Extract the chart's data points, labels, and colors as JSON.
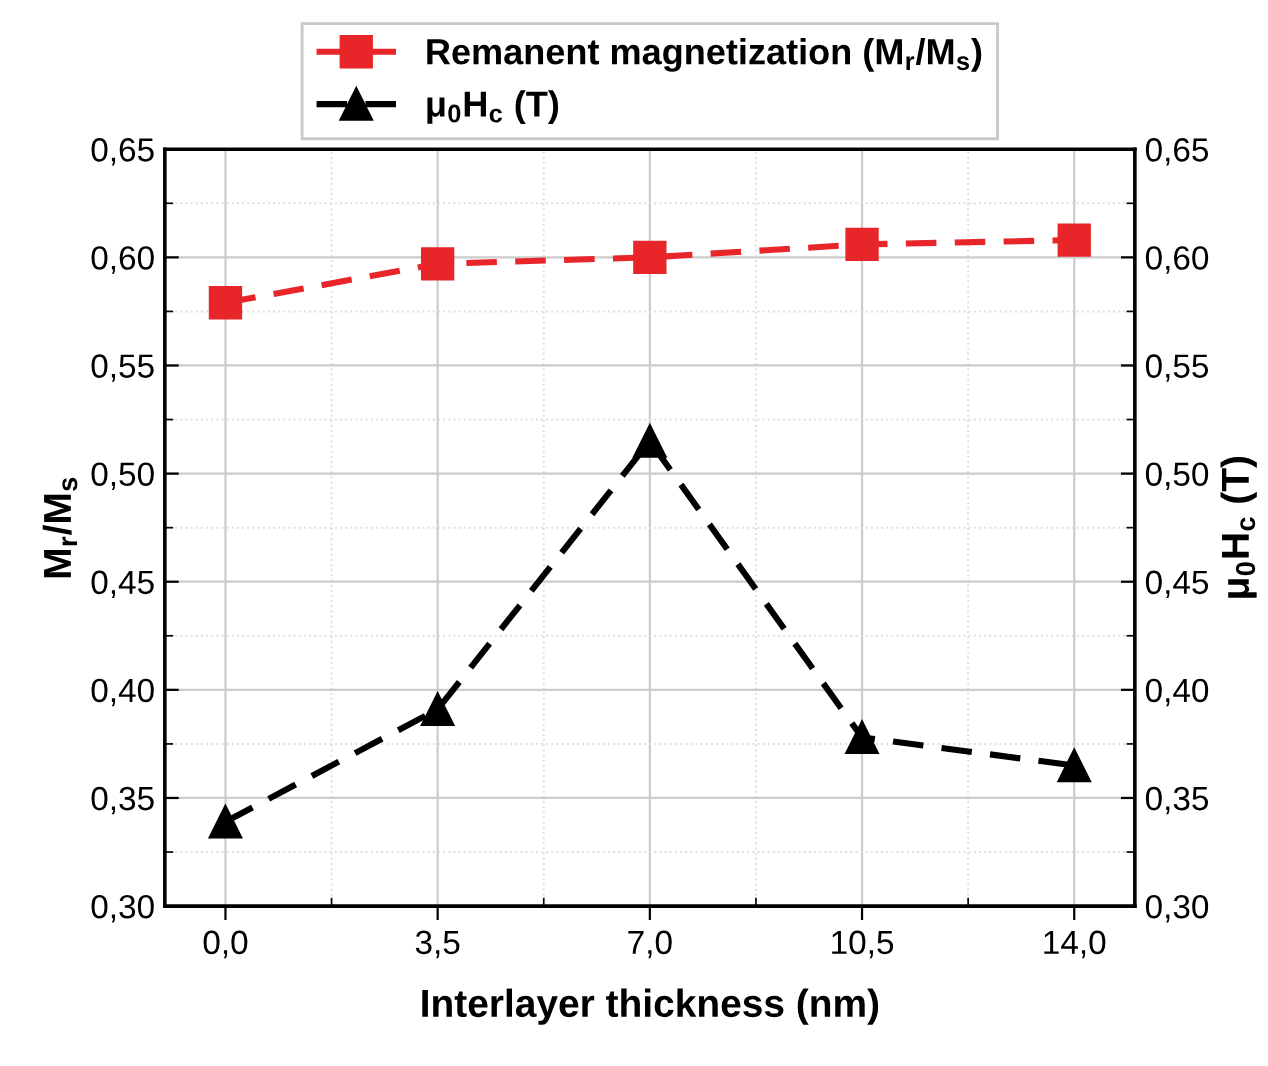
{
  "chart_data": {
    "type": "line",
    "xlabel": "Interlayer thickness (nm)",
    "ylabel": "M$_{r}$/M$_{s}$",
    "y2label": "μ$_{0}$H$_{c}$ (T)",
    "x": [
      0,
      3.5,
      7,
      10.5,
      14
    ],
    "series": [
      {
        "name": "Remanent magnetization (M$_{r}$/M$_{s}$)",
        "color": "#e8262a",
        "marker": "square",
        "values": [
          0.579,
          0.597,
          0.6,
          0.606,
          0.608
        ]
      },
      {
        "name": "μ$_{0}$H$_{c}$ (T)",
        "color": "#000000",
        "marker": "triangle",
        "axis": "y2",
        "values": [
          0.339,
          0.391,
          0.515,
          0.378,
          0.365
        ]
      }
    ],
    "xlim": [
      -1,
      15
    ],
    "xticks": [
      {
        "value": 0,
        "label": "0,0"
      },
      {
        "value": 3.5,
        "label": "3,5"
      },
      {
        "value": 7,
        "label": "7,0"
      },
      {
        "value": 10.5,
        "label": "10,5"
      },
      {
        "value": 14,
        "label": "14,0"
      }
    ],
    "ylim": [
      0.3,
      0.65
    ],
    "yticks": [
      {
        "value": 0.3,
        "label": "0,30"
      },
      {
        "value": 0.35,
        "label": "0,35"
      },
      {
        "value": 0.4,
        "label": "0,40"
      },
      {
        "value": 0.45,
        "label": "0,45"
      },
      {
        "value": 0.5,
        "label": "0,50"
      },
      {
        "value": 0.55,
        "label": "0,55"
      },
      {
        "value": 0.6,
        "label": "0,60"
      },
      {
        "value": 0.65,
        "label": "0,65"
      }
    ],
    "y2lim": [
      0.3,
      0.65
    ],
    "y2ticks": [
      {
        "value": 0.3,
        "label": "0,30"
      },
      {
        "value": 0.35,
        "label": "0,35"
      },
      {
        "value": 0.4,
        "label": "0,40"
      },
      {
        "value": 0.45,
        "label": "0,45"
      },
      {
        "value": 0.5,
        "label": "0,50"
      },
      {
        "value": 0.55,
        "label": "0,55"
      },
      {
        "value": 0.6,
        "label": "0,60"
      },
      {
        "value": 0.65,
        "label": "0,65"
      }
    ],
    "grid": true,
    "legend": "top",
    "line_style": "dashed"
  }
}
